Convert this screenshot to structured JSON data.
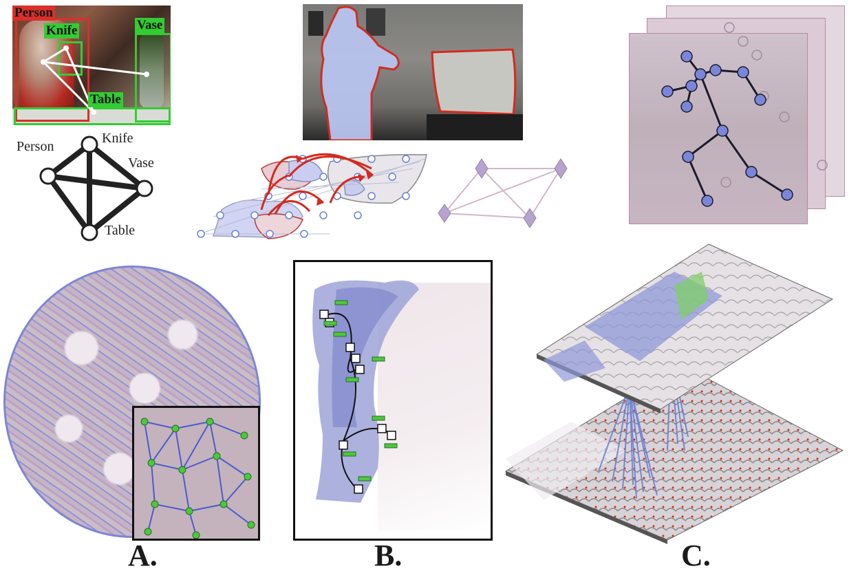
{
  "object_detection": {
    "tags": [
      {
        "key": "person",
        "text": "Person",
        "color": "#d9302a"
      },
      {
        "key": "knife",
        "text": "Knife",
        "color": "#33cc33"
      },
      {
        "key": "vase",
        "text": "Vase",
        "color": "#33cc33"
      },
      {
        "key": "table",
        "text": "Table",
        "color": "#33cc33"
      }
    ],
    "graph_nodes": [
      "Person",
      "Knife",
      "Vase",
      "Table"
    ]
  },
  "panel_labels": [
    "A.",
    "B.",
    "C."
  ],
  "colors": {
    "graph_blue": "#6b7fd7",
    "edge_red": "#d42a1e",
    "tissue_pink": "#c9b5be",
    "node_green": "#4cc83c"
  }
}
